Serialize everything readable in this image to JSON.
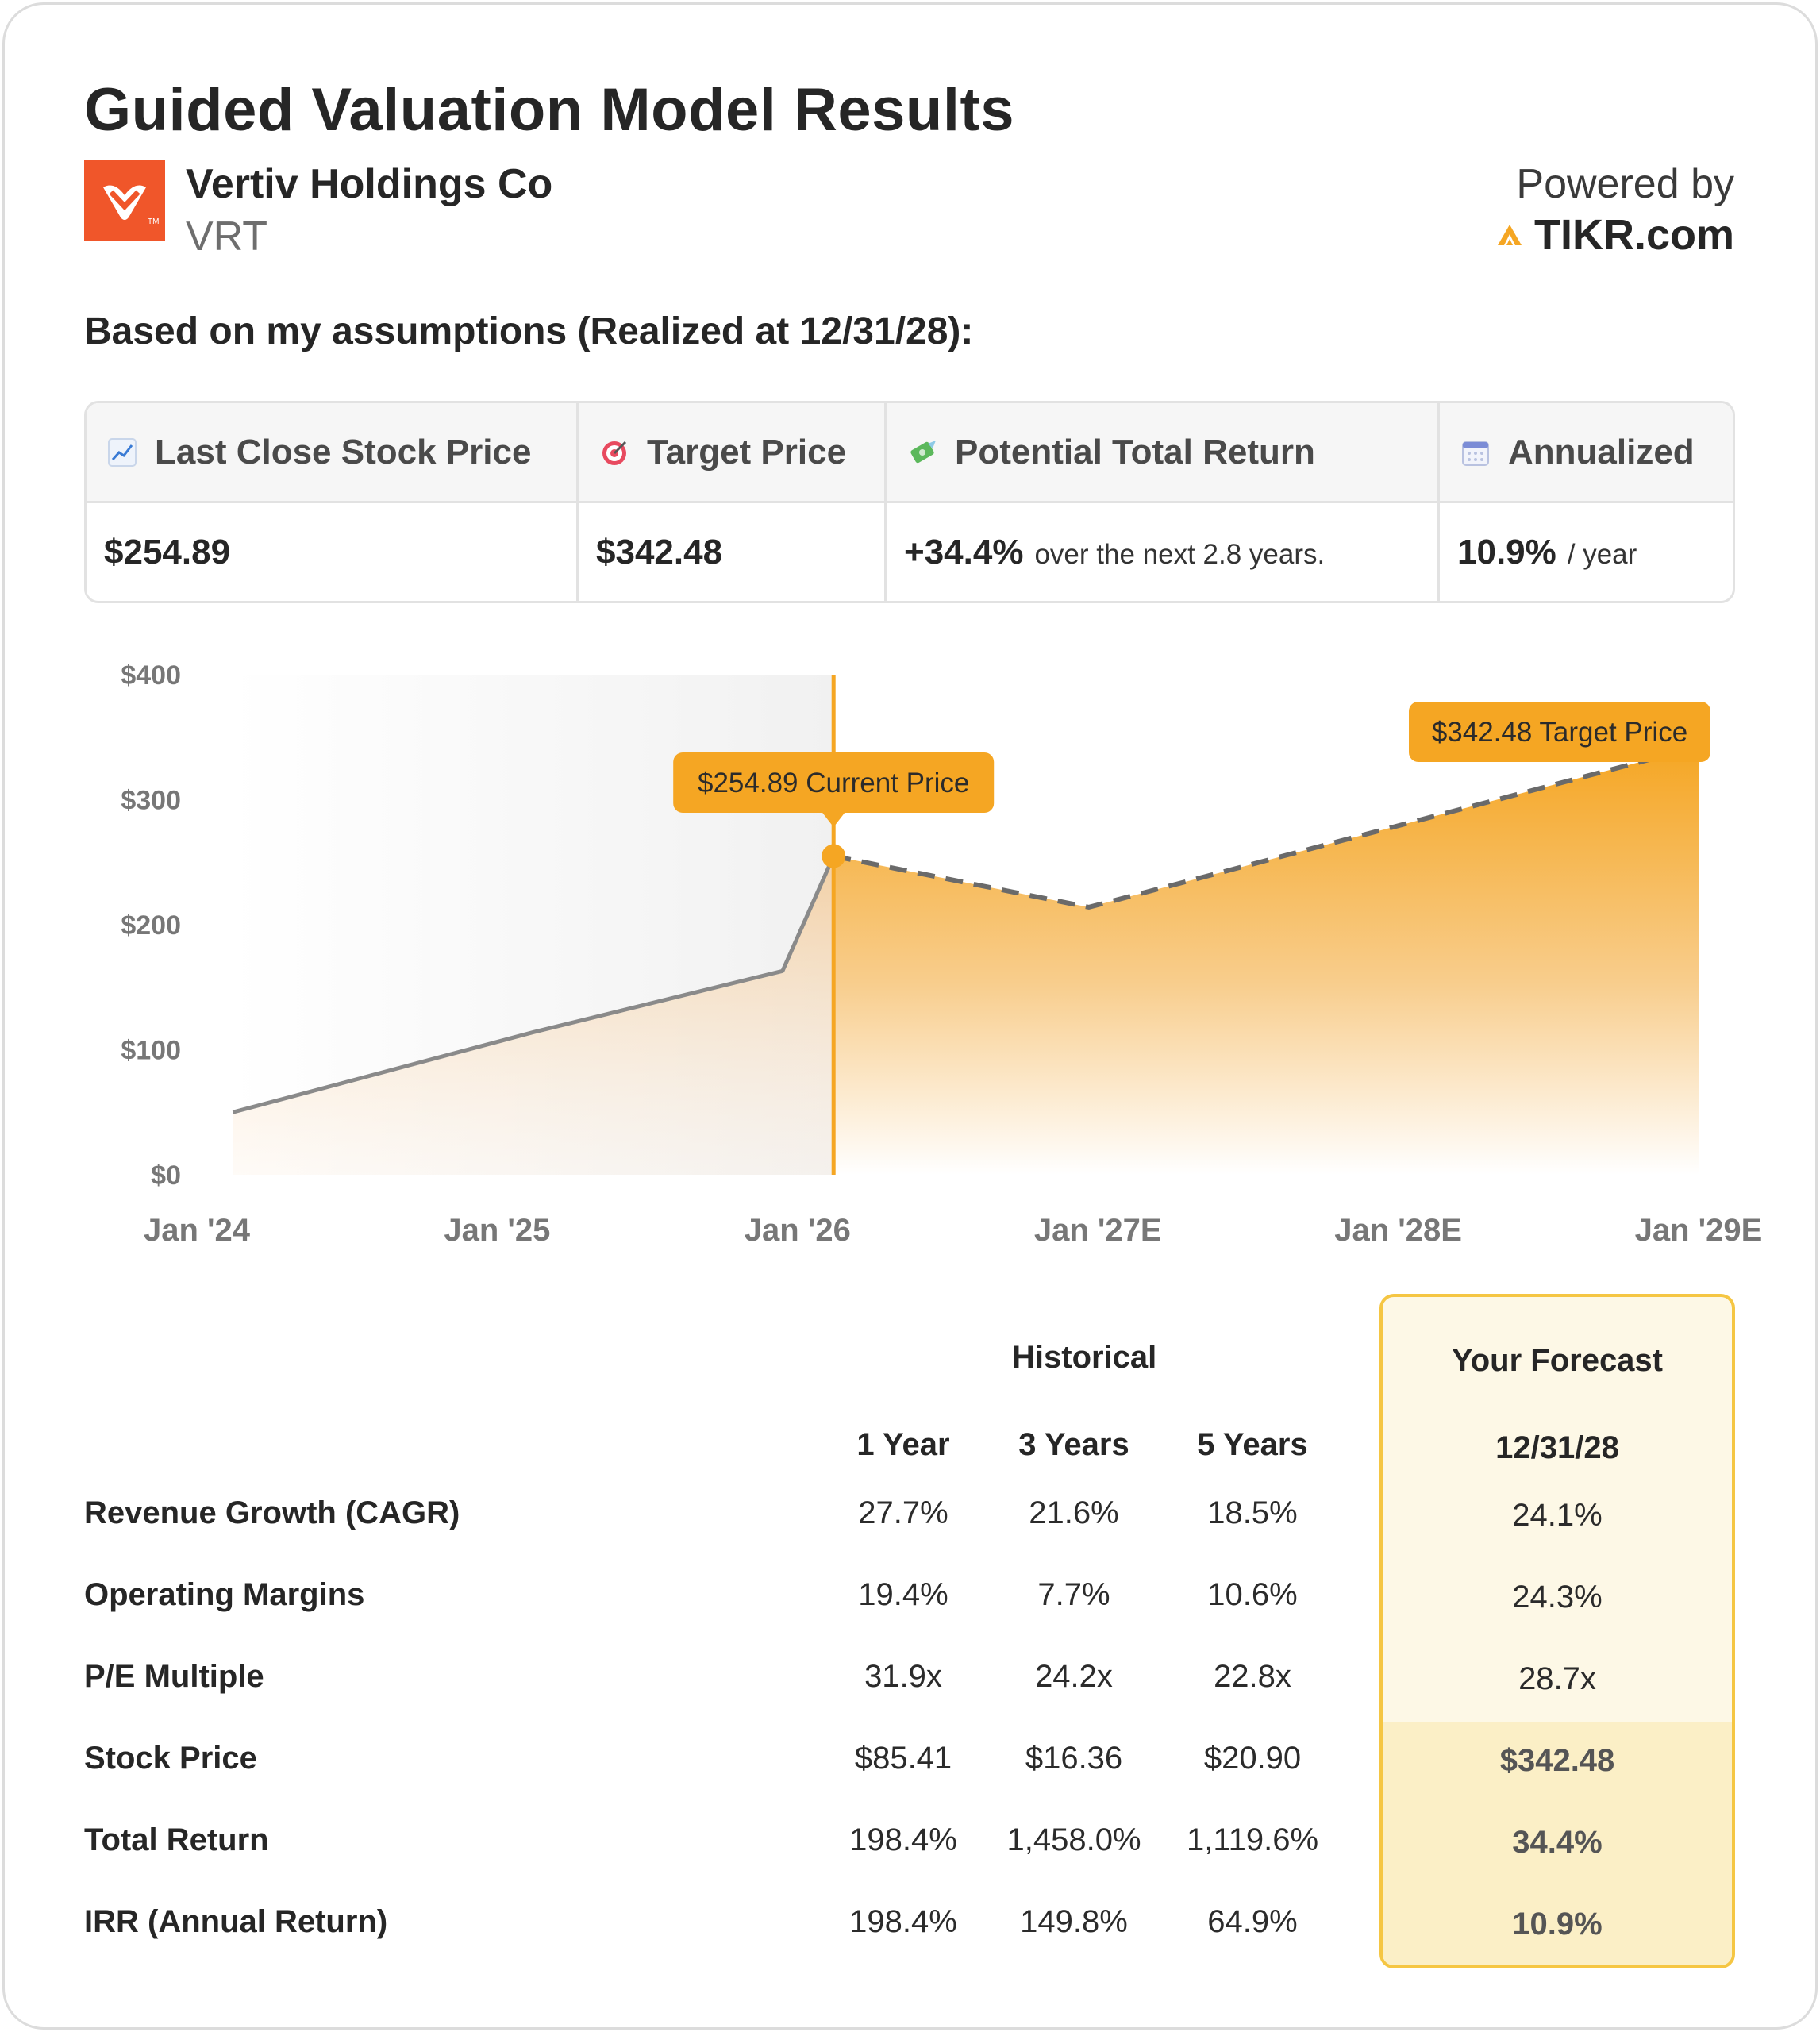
{
  "header": {
    "title": "Guided Valuation Model Results",
    "company": "Vertiv Holdings Co",
    "ticker": "VRT",
    "powered_by": "Powered by",
    "brand": "TIKR.com",
    "brand_color": "#f5a623",
    "logo_color": "#f0562a"
  },
  "assumption_text": "Based on my assumptions (Realized at 12/31/28):",
  "metrics": {
    "last_close": {
      "label": "Last Close Stock Price",
      "icon": "chart-increasing-icon",
      "value": "$254.89"
    },
    "target": {
      "label": "Target Price",
      "icon": "target-icon",
      "value": "$342.48"
    },
    "total_return": {
      "label": "Potential Total Return",
      "icon": "money-wings-icon",
      "value": "+34.4%",
      "suffix": "over the next 2.8 years."
    },
    "annualized": {
      "label": "Annualized",
      "icon": "calendar-icon",
      "value": "10.9%",
      "suffix": "/ year"
    }
  },
  "chart_data": {
    "type": "area",
    "x_tick_labels": [
      "Jan '24",
      "Jan '25",
      "Jan '26",
      "Jan '27E",
      "Jan '28E",
      "Jan '29E"
    ],
    "y_tick_labels": [
      "$400",
      "$300",
      "$200",
      "$100",
      "$0"
    ],
    "ylim": [
      0,
      400
    ],
    "xlim": [
      2024.0,
      2029.0
    ],
    "series": [
      {
        "kind": "historical",
        "x": [
          2024.12,
          2025.12,
          2025.95,
          2026.12
        ],
        "y": [
          50,
          114,
          163,
          254.89
        ]
      },
      {
        "kind": "forecast",
        "x": [
          2026.12,
          2026.97,
          2029.0
        ],
        "y": [
          254.89,
          214,
          342.48
        ]
      }
    ],
    "current_price_x": 2026.12,
    "current_label": "$254.89 Current Price",
    "target_label": "$342.48 Target Price",
    "accent": "#f5a623"
  },
  "table": {
    "historical_header": "Historical",
    "forecast_header": "Your Forecast",
    "forecast_date": "12/31/28",
    "columns": [
      "1 Year",
      "3 Years",
      "5 Years"
    ],
    "rows": [
      {
        "label": "Revenue Growth (CAGR)",
        "values": [
          "27.7%",
          "21.6%",
          "18.5%"
        ],
        "forecast": "24.1%"
      },
      {
        "label": "Operating Margins",
        "values": [
          "19.4%",
          "7.7%",
          "10.6%"
        ],
        "forecast": "24.3%"
      },
      {
        "label": "P/E Multiple",
        "values": [
          "31.9x",
          "24.2x",
          "22.8x"
        ],
        "forecast": "28.7x"
      },
      {
        "label": "Stock Price",
        "values": [
          "$85.41",
          "$16.36",
          "$20.90"
        ],
        "forecast": "$342.48"
      },
      {
        "label": "Total Return",
        "values": [
          "198.4%",
          "1,458.0%",
          "1,119.6%"
        ],
        "forecast": "34.4%"
      },
      {
        "label": "IRR (Annual Return)",
        "values": [
          "198.4%",
          "149.8%",
          "64.9%"
        ],
        "forecast": "10.9%"
      }
    ]
  }
}
